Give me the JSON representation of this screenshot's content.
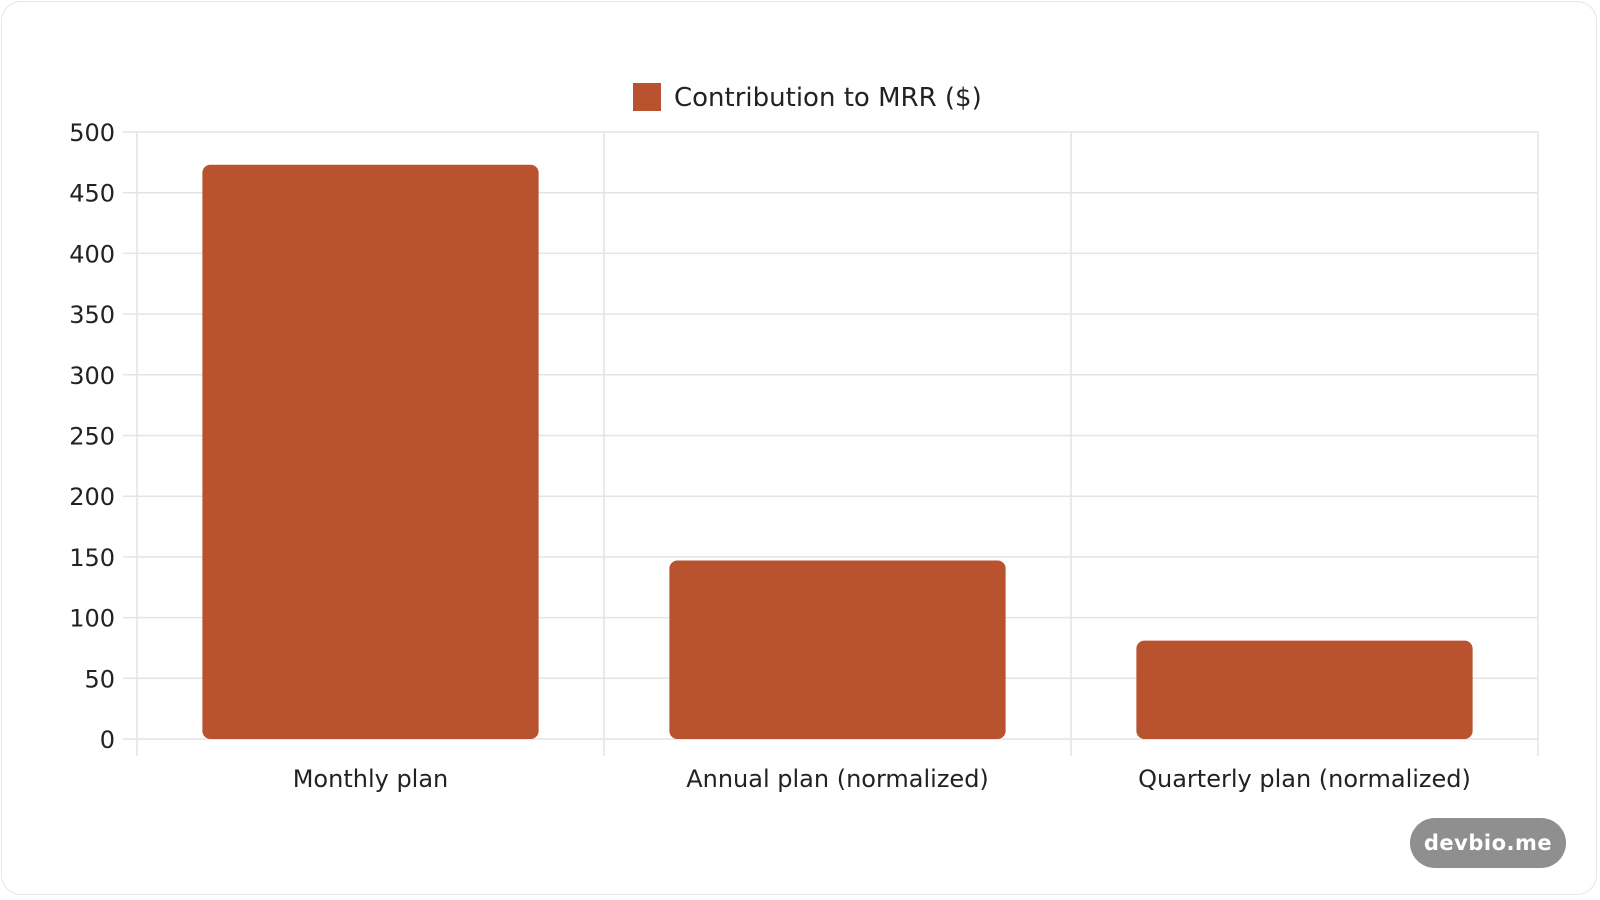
{
  "chart_data": {
    "type": "bar",
    "categories": [
      "Monthly plan",
      "Annual plan (normalized)",
      "Quarterly plan (normalized)"
    ],
    "series": [
      {
        "name": "Contribution to MRR ($)",
        "values": [
          473,
          147,
          81
        ]
      }
    ],
    "ylim": [
      0,
      500
    ],
    "yticks": [
      "500",
      "450",
      "400",
      "350",
      "300",
      "250",
      "200",
      "150",
      "100",
      "50",
      "0"
    ],
    "grid": true,
    "legend_position": "top-center",
    "title": "",
    "xlabel": "",
    "ylabel": ""
  },
  "colors": {
    "bar": "#b9522e",
    "grid": "#e4e4e4",
    "watermark_bg": "#8f8f8f"
  },
  "watermark": {
    "text": "devbio.me"
  }
}
